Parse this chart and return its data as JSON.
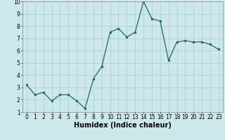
{
  "x": [
    0,
    1,
    2,
    3,
    4,
    5,
    6,
    7,
    8,
    9,
    10,
    11,
    12,
    13,
    14,
    15,
    16,
    17,
    18,
    19,
    20,
    21,
    22,
    23
  ],
  "y": [
    3.2,
    2.4,
    2.6,
    1.9,
    2.4,
    2.4,
    1.9,
    1.3,
    3.7,
    4.7,
    7.5,
    7.8,
    7.1,
    7.5,
    10.0,
    8.6,
    8.4,
    5.2,
    6.7,
    6.8,
    6.7,
    6.7,
    6.5,
    6.1
  ],
  "line_color": "#1a6b5a",
  "marker_color": "#1a6b5a",
  "background_color": "#cce8e8",
  "grid_color": "#a8cccc",
  "xlabel": "Humidex (Indice chaleur)",
  "ylim": [
    1,
    10
  ],
  "xlim_min": -0.5,
  "xlim_max": 23.5,
  "yticks": [
    1,
    2,
    3,
    4,
    5,
    6,
    7,
    8,
    9,
    10
  ],
  "xticks": [
    0,
    1,
    2,
    3,
    4,
    5,
    6,
    7,
    8,
    9,
    10,
    11,
    12,
    13,
    14,
    15,
    16,
    17,
    18,
    19,
    20,
    21,
    22,
    23
  ],
  "tick_fontsize": 5.5,
  "xlabel_fontsize": 7
}
